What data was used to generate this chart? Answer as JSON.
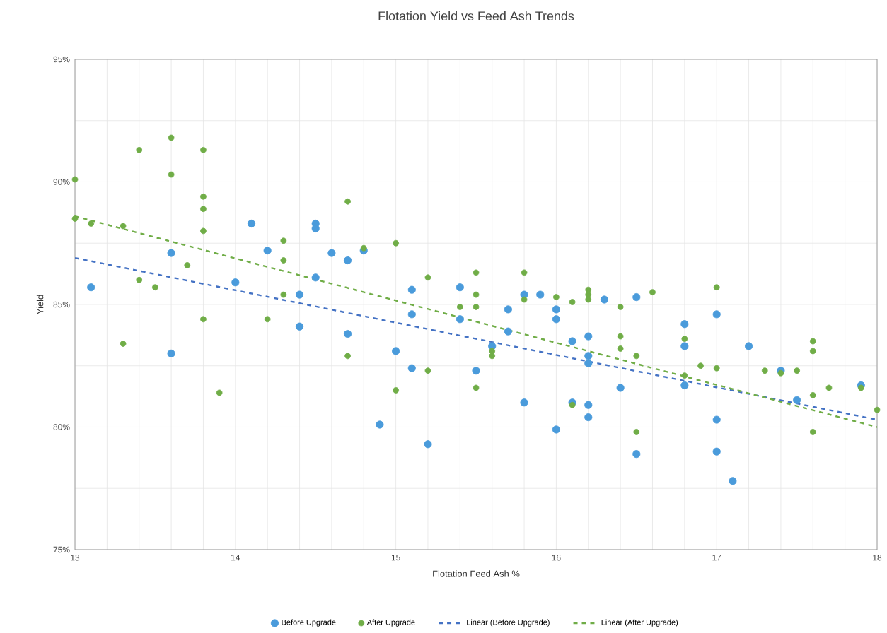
{
  "chart_data": {
    "type": "scatter",
    "title": "Flotation Yield vs Feed Ash Trends",
    "xlabel": "Flotation Feed Ash %",
    "ylabel": "Yield",
    "xlim": [
      13,
      18
    ],
    "ylim": [
      75,
      95
    ],
    "xticks": [
      13,
      {
        "value": 13.2,
        "label": null
      },
      {
        "value": 13.4,
        "label": null
      },
      {
        "value": 13.6,
        "label": null
      },
      {
        "value": 13.8,
        "label": null
      },
      14,
      {
        "value": 14.2,
        "label": null
      },
      {
        "value": 14.4,
        "label": null
      },
      {
        "value": 14.6,
        "label": null
      },
      {
        "value": 14.8,
        "label": null
      },
      15,
      {
        "value": 15.2,
        "label": null
      },
      {
        "value": 15.4,
        "label": null
      },
      {
        "value": 15.6,
        "label": null
      },
      {
        "value": 15.8,
        "label": null
      },
      16,
      {
        "value": 16.2,
        "label": null
      },
      {
        "value": 16.4,
        "label": null
      },
      {
        "value": 16.6,
        "label": null
      },
      {
        "value": 16.8,
        "label": null
      },
      17,
      {
        "value": 17.2,
        "label": null
      },
      {
        "value": 17.4,
        "label": null
      },
      {
        "value": 17.6,
        "label": null
      },
      {
        "value": 17.8,
        "label": null
      },
      18
    ],
    "yticks": [
      {
        "value": 75,
        "label": "75%"
      },
      {
        "value": 77.5,
        "label": null
      },
      {
        "value": 80,
        "label": "80%"
      },
      {
        "value": 82.5,
        "label": null
      },
      {
        "value": 85,
        "label": "85%"
      },
      {
        "value": 87.5,
        "label": null
      },
      {
        "value": 90,
        "label": "90%"
      },
      {
        "value": 92.5,
        "label": null
      },
      {
        "value": 95,
        "label": "95%"
      }
    ],
    "grid": true,
    "legend": "bottom",
    "series": [
      {
        "name": "Before Upgrade",
        "color": "#4a9bdb",
        "marker": "circle",
        "x": [
          13.1,
          13.6,
          13.6,
          14.0,
          14.1,
          14.2,
          14.4,
          14.4,
          14.5,
          14.5,
          14.5,
          14.6,
          14.7,
          14.7,
          14.8,
          14.9,
          15.0,
          15.1,
          15.1,
          15.1,
          15.2,
          15.4,
          15.4,
          15.5,
          15.6,
          15.7,
          15.7,
          15.8,
          15.8,
          15.9,
          16.0,
          16.0,
          16.0,
          16.1,
          16.1,
          16.2,
          16.2,
          16.2,
          16.2,
          16.2,
          16.3,
          16.4,
          16.5,
          16.5,
          16.8,
          16.8,
          16.8,
          17.0,
          17.0,
          17.0,
          17.1,
          17.2,
          17.4,
          17.5,
          17.9
        ],
        "values": [
          85.7,
          87.1,
          83.0,
          85.9,
          88.3,
          87.2,
          85.4,
          84.1,
          88.3,
          88.1,
          86.1,
          87.1,
          86.8,
          83.8,
          87.2,
          80.1,
          83.1,
          85.6,
          84.6,
          82.4,
          79.3,
          85.7,
          84.4,
          82.3,
          83.3,
          84.8,
          83.9,
          85.4,
          81.0,
          85.4,
          84.8,
          84.4,
          79.9,
          83.5,
          81.0,
          83.7,
          82.9,
          82.6,
          80.9,
          80.4,
          85.2,
          81.6,
          85.3,
          78.9,
          84.2,
          83.3,
          81.7,
          84.6,
          80.3,
          79.0,
          77.8,
          83.3,
          82.3,
          81.1,
          81.7
        ]
      },
      {
        "name": "After Upgrade",
        "color": "#70ad47",
        "marker": "circle",
        "x": [
          13.0,
          13.0,
          13.1,
          13.3,
          13.3,
          13.4,
          13.4,
          13.5,
          13.6,
          13.6,
          13.7,
          13.8,
          13.8,
          13.8,
          13.8,
          13.8,
          13.9,
          14.2,
          14.3,
          14.3,
          14.3,
          14.7,
          14.7,
          14.8,
          15.0,
          15.0,
          15.2,
          15.2,
          15.4,
          15.5,
          15.5,
          15.5,
          15.5,
          15.6,
          15.6,
          15.8,
          15.8,
          16.0,
          16.1,
          16.1,
          16.2,
          16.2,
          16.2,
          16.4,
          16.4,
          16.4,
          16.5,
          16.5,
          16.6,
          16.8,
          16.8,
          16.9,
          17.0,
          17.0,
          17.3,
          17.4,
          17.5,
          17.6,
          17.6,
          17.6,
          17.6,
          17.7,
          17.9,
          18.0
        ],
        "values": [
          90.1,
          88.5,
          88.3,
          88.2,
          83.4,
          91.3,
          86.0,
          85.7,
          91.8,
          90.3,
          86.6,
          91.3,
          89.4,
          88.9,
          88.0,
          84.4,
          81.4,
          84.4,
          87.6,
          86.8,
          85.4,
          89.2,
          82.9,
          87.3,
          87.5,
          81.5,
          86.1,
          82.3,
          84.9,
          86.3,
          85.4,
          84.9,
          81.6,
          83.1,
          82.9,
          86.3,
          85.2,
          85.3,
          85.1,
          80.9,
          85.6,
          85.4,
          85.2,
          84.9,
          83.7,
          83.2,
          82.9,
          79.8,
          85.5,
          83.6,
          82.1,
          82.5,
          85.7,
          82.4,
          82.3,
          82.2,
          82.3,
          83.5,
          83.1,
          81.3,
          79.8,
          81.6,
          81.6,
          80.7
        ]
      },
      {
        "name": "Linear (Before Upgrade)",
        "type": "line",
        "line_style": "dashed",
        "marker": "none",
        "color": "#4472c4",
        "x": [
          13,
          18
        ],
        "values": [
          86.9,
          80.3
        ]
      },
      {
        "name": "Linear (After Upgrade)",
        "type": "line",
        "line_style": "dashed",
        "marker": "none",
        "color": "#70ad47",
        "x": [
          13,
          18
        ],
        "values": [
          88.6,
          80.0
        ]
      }
    ]
  }
}
